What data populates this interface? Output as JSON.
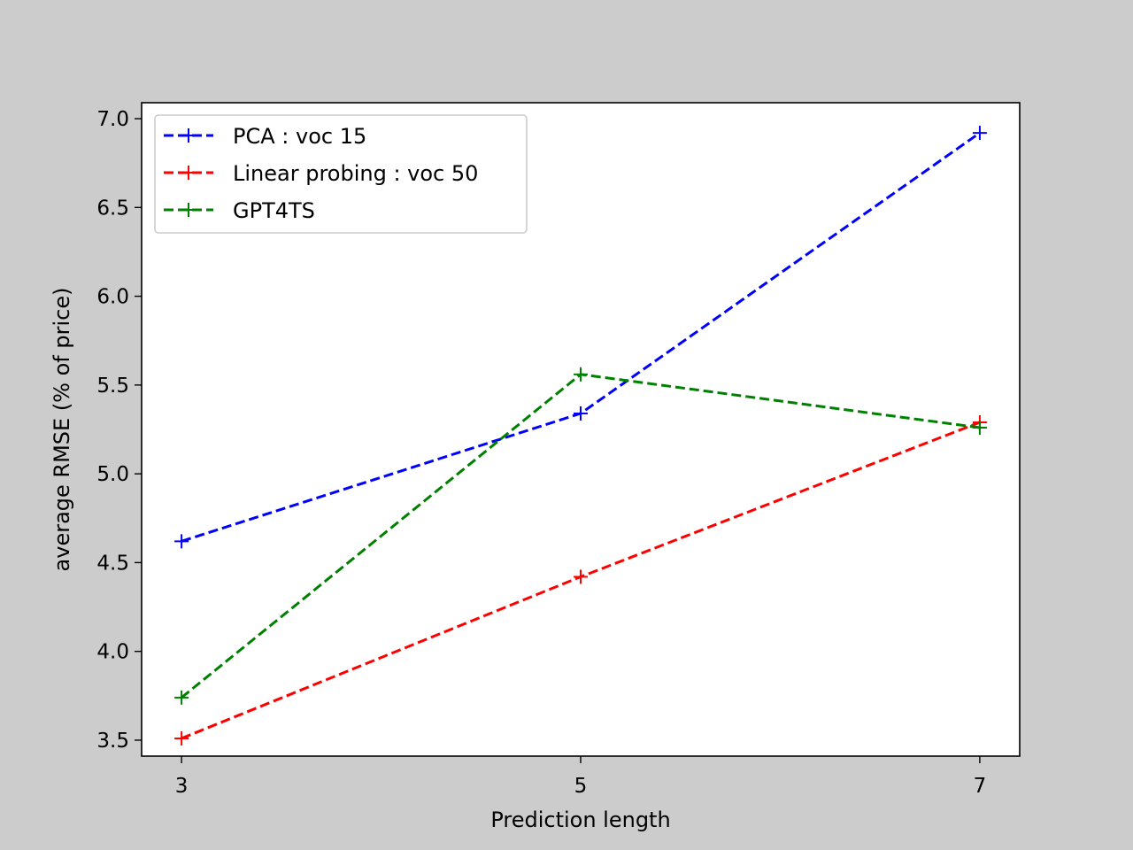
{
  "chart_data": {
    "type": "line",
    "title": "",
    "xlabel": "Prediction length",
    "ylabel": "average RMSE (% of price)",
    "x": [
      3,
      5,
      7
    ],
    "xticks": [
      3,
      5,
      7
    ],
    "xticklabels": [
      "3",
      "5",
      "7"
    ],
    "yticks": [
      3.5,
      4.0,
      4.5,
      5.0,
      5.5,
      6.0,
      6.5,
      7.0
    ],
    "yticklabels": [
      "3.5",
      "4.0",
      "4.5",
      "5.0",
      "5.5",
      "6.0",
      "6.5",
      "7.0"
    ],
    "xlim": [
      2.8,
      7.2
    ],
    "ylim": [
      3.41,
      7.09
    ],
    "grid": false,
    "legend_position": "upper-left",
    "line_style": "dashed",
    "marker": "+",
    "series": [
      {
        "name": "PCA : voc 15",
        "color": "#0000ff",
        "values": [
          4.62,
          5.34,
          6.92
        ]
      },
      {
        "name": "Linear probing : voc 50",
        "color": "#ff0000",
        "values": [
          3.51,
          4.42,
          5.29
        ]
      },
      {
        "name": "GPT4TS",
        "color": "#008000",
        "values": [
          3.74,
          5.56,
          5.26
        ]
      }
    ]
  }
}
